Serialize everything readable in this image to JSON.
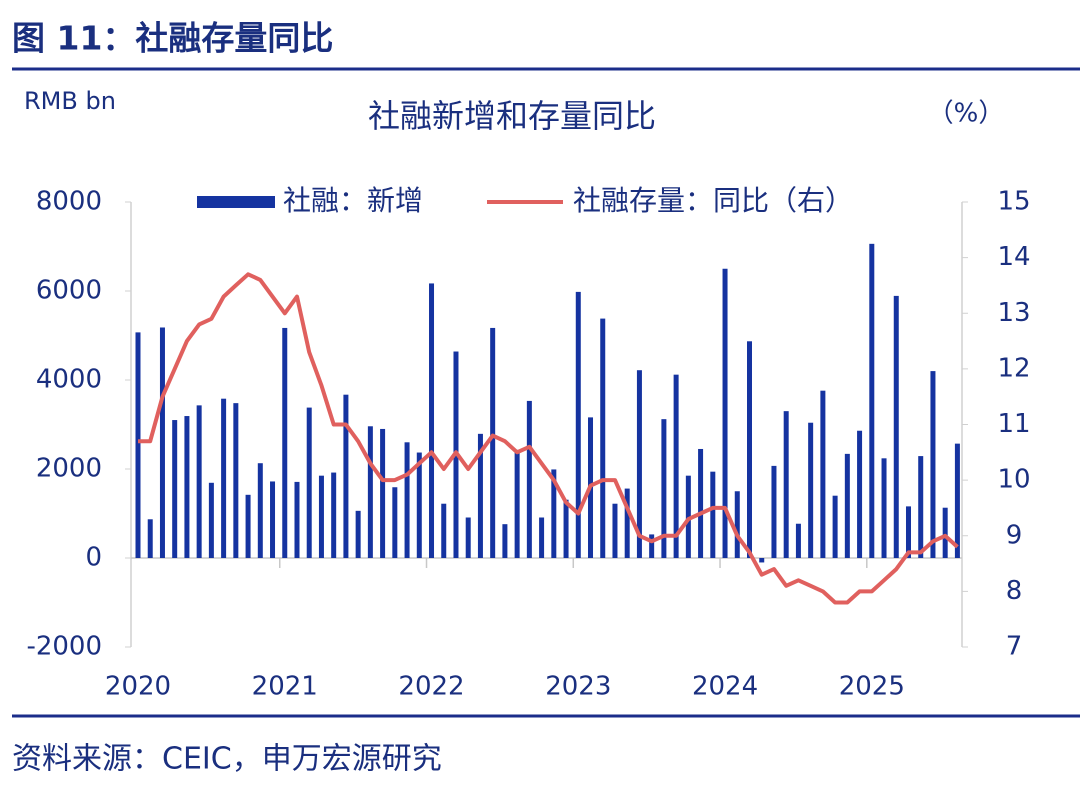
{
  "header": {
    "title": "图 11：社融存量同比"
  },
  "chart_data": {
    "type": "bar-line",
    "title": "社融新增和存量同比",
    "ylabel": "RMB bn",
    "y2label": "（%）",
    "categories": [
      "2020",
      null,
      null,
      null,
      null,
      null,
      null,
      null,
      null,
      null,
      null,
      null,
      "2021",
      null,
      null,
      null,
      null,
      null,
      null,
      null,
      null,
      null,
      null,
      null,
      "2022",
      null,
      null,
      null,
      null,
      null,
      null,
      null,
      null,
      null,
      null,
      null,
      "2023",
      null,
      null,
      null,
      null,
      null,
      null,
      null,
      null,
      null,
      null,
      null,
      "2024",
      null,
      null,
      null,
      null,
      null,
      null,
      null,
      null,
      null,
      null,
      null,
      "2025",
      null,
      null,
      null,
      null,
      null,
      null,
      null
    ],
    "series": [
      {
        "name": "社融：新增",
        "color": "#1533a0",
        "type": "bar",
        "values": [
          5070,
          870,
          5180,
          3100,
          3190,
          3430,
          1690,
          3580,
          3480,
          1420,
          2130,
          1720,
          5170,
          1710,
          3380,
          1850,
          1920,
          3670,
          1060,
          2960,
          2900,
          1590,
          2600,
          2370,
          6170,
          1220,
          4640,
          910,
          2790,
          5170,
          760,
          2430,
          3530,
          910,
          1990,
          1310,
          5980,
          3160,
          5380,
          1220,
          1560,
          4220,
          530,
          3120,
          4120,
          1850,
          2450,
          1940,
          6500,
          1500,
          4870,
          -100,
          2070,
          3300,
          770,
          3040,
          3760,
          1400,
          2340,
          2860,
          7060,
          2240,
          5890,
          1160,
          2290,
          4200,
          1130,
          2570
        ]
      },
      {
        "name": "社融存量：同比（右）",
        "color": "#e0605e",
        "type": "line",
        "axis": "y2",
        "values": [
          10.7,
          10.7,
          11.5,
          12.0,
          12.5,
          12.8,
          12.9,
          13.3,
          13.5,
          13.7,
          13.6,
          13.3,
          13.0,
          13.3,
          12.3,
          11.7,
          11.0,
          11.0,
          10.7,
          10.3,
          10.0,
          10.0,
          10.1,
          10.3,
          10.5,
          10.2,
          10.5,
          10.2,
          10.5,
          10.8,
          10.7,
          10.5,
          10.6,
          10.3,
          10.0,
          9.6,
          9.4,
          9.9,
          10.0,
          10.0,
          9.5,
          9.0,
          8.9,
          9.0,
          9.0,
          9.3,
          9.4,
          9.5,
          9.5,
          9.0,
          8.7,
          8.3,
          8.4,
          8.1,
          8.2,
          8.1,
          8.0,
          7.8,
          7.8,
          8.0,
          8.0,
          8.2,
          8.4,
          8.7,
          8.7,
          8.9,
          9.0,
          8.8
        ]
      }
    ],
    "ylim": [
      -2000,
      8000
    ],
    "yticks": [
      -2000,
      0,
      2000,
      4000,
      6000,
      8000
    ],
    "y2lim": [
      7,
      15
    ],
    "y2ticks": [
      7,
      8,
      9,
      10,
      11,
      12,
      13,
      14,
      15
    ],
    "grid": false,
    "legend": "top"
  },
  "footer": {
    "source": "资料来源：CEIC，申万宏源研究"
  }
}
